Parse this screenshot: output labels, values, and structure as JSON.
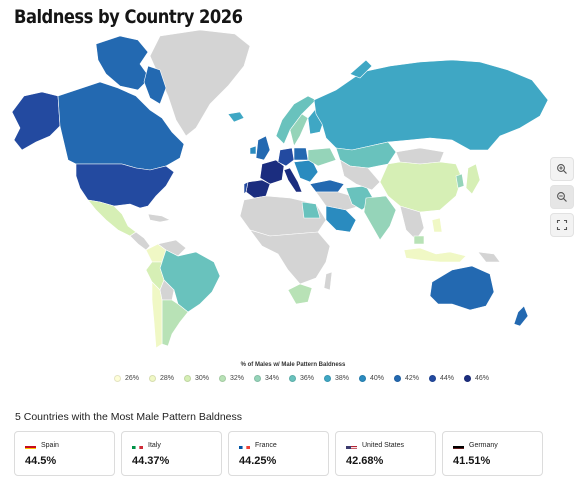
{
  "page": {
    "title": "Baldness by Country 2026"
  },
  "map": {
    "empty_color": "#d4d4d4",
    "colors": {
      "26": "#fefed8",
      "28": "#f0f8c5",
      "30": "#d6efb5",
      "32": "#b8e2b6",
      "34": "#95d4b9",
      "36": "#69c2bd",
      "38": "#3fa7c4",
      "40": "#2a8bbf",
      "42": "#2369b1",
      "44": "#234aa0",
      "46": "#1b2d7f"
    },
    "legend": {
      "title": "% of Males w/ Male Pattern Baldness",
      "items": [
        {
          "label": "26%",
          "color": "#fefed8"
        },
        {
          "label": "28%",
          "color": "#f0f8c5"
        },
        {
          "label": "30%",
          "color": "#d6efb5"
        },
        {
          "label": "32%",
          "color": "#b8e2b6"
        },
        {
          "label": "34%",
          "color": "#95d4b9"
        },
        {
          "label": "36%",
          "color": "#69c2bd"
        },
        {
          "label": "38%",
          "color": "#3fa7c4"
        },
        {
          "label": "40%",
          "color": "#2a8bbf"
        },
        {
          "label": "42%",
          "color": "#2369b1"
        },
        {
          "label": "44%",
          "color": "#234aa0"
        },
        {
          "label": "46%",
          "color": "#1b2d7f"
        }
      ]
    },
    "controls": {
      "zoom_in": "zoom-in-icon",
      "zoom_out": "zoom-out-icon",
      "fullscreen": "fullscreen-icon"
    }
  },
  "top5": {
    "title": "5 Countries with the Most Male Pattern Baldness",
    "cards": [
      {
        "country": "Spain",
        "value": "44.5%",
        "flag": "spain-flag-icon"
      },
      {
        "country": "Italy",
        "value": "44.37%",
        "flag": "italy-flag-icon"
      },
      {
        "country": "France",
        "value": "44.25%",
        "flag": "france-flag-icon"
      },
      {
        "country": "United States",
        "value": "42.68%",
        "flag": "us-flag-icon"
      },
      {
        "country": "Germany",
        "value": "41.51%",
        "flag": "germany-flag-icon"
      }
    ]
  }
}
